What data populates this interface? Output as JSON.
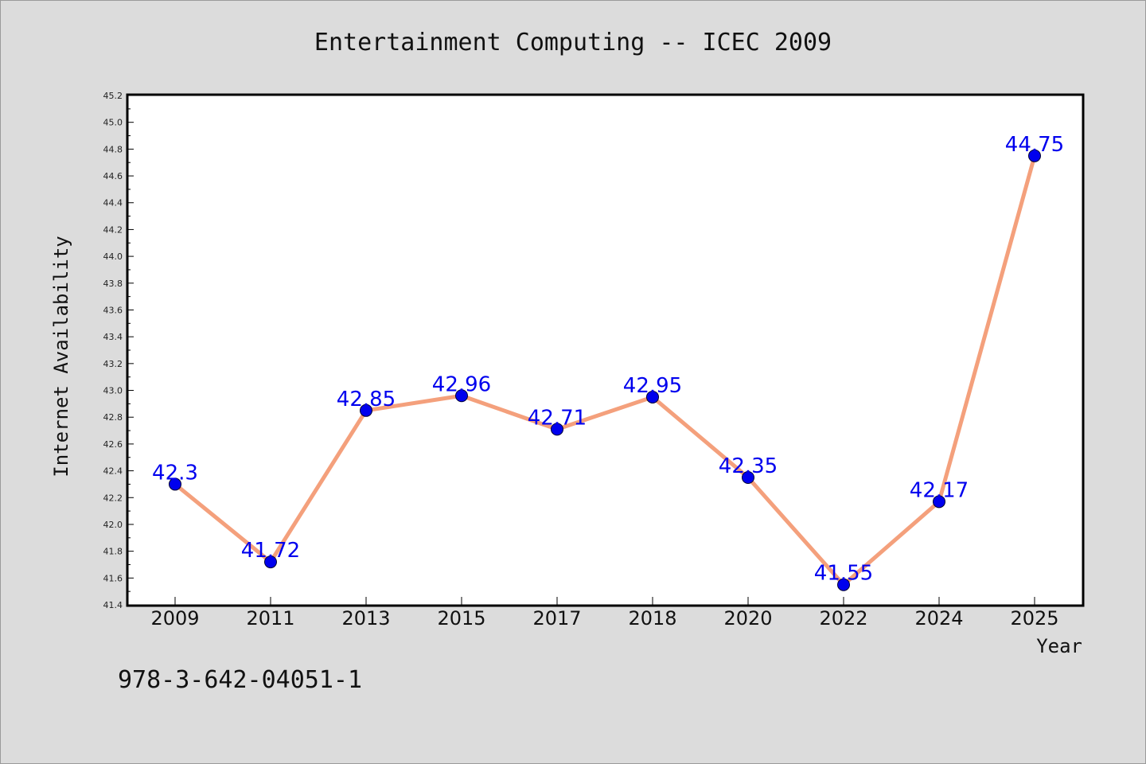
{
  "chart_data": {
    "type": "line",
    "title": "Entertainment Computing -- ICEC 2009",
    "xlabel": "Year",
    "ylabel": "Internet Availability",
    "categories": [
      "2009",
      "2011",
      "2013",
      "2015",
      "2017",
      "2018",
      "2020",
      "2022",
      "2024",
      "2025"
    ],
    "series": [
      {
        "values": [
          42.3,
          41.72,
          42.85,
          42.96,
          42.71,
          42.95,
          42.35,
          41.55,
          42.17,
          44.75
        ]
      }
    ],
    "data_labels": [
      "42.3",
      "41.72",
      "42.85",
      "42.96",
      "42.71",
      "42.95",
      "42.35",
      "41.55",
      "42.17",
      "44.75"
    ],
    "ylim": [
      41.4,
      45.2
    ],
    "yticks": [
      "41.4",
      "41.6",
      "41.8",
      "42.0",
      "42.2",
      "42.4",
      "42.6",
      "42.8",
      "43.0",
      "43.2",
      "43.4",
      "43.6",
      "43.8",
      "44.0",
      "44.2",
      "44.4",
      "44.6",
      "44.8",
      "45.0",
      "45.2"
    ],
    "grid": false,
    "legend": "none",
    "colors": {
      "line": "#f4a07c",
      "marker": "#0000ee",
      "data_label": "#0000ee",
      "plot_background": "#ffffff",
      "figure_background": "#dcdcdc"
    }
  },
  "footer": {
    "isbn": "978-3-642-04051-1"
  }
}
